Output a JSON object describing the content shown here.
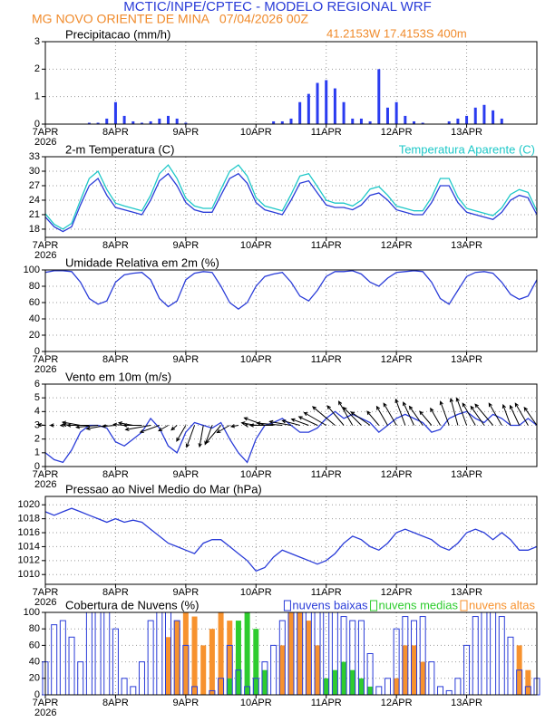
{
  "header": {
    "title": "MCTIC/INPE/CPTEC - MODELO REGIONAL WRF",
    "location_time": "MG NOVO ORIENTE DE MINA   07/04/2026 00Z",
    "coordinates": "41.2153W 17.4153S 400m"
  },
  "chart_data": [
    {
      "type": "bar",
      "title": "Precipitacao (mm/h)",
      "year": "2026",
      "x": [
        0,
        3,
        6,
        9,
        12,
        15,
        18,
        21,
        24,
        27,
        30,
        33,
        36,
        39,
        42,
        45,
        48,
        51,
        54,
        57,
        60,
        63,
        66,
        69,
        72,
        75,
        78,
        81,
        84,
        87,
        90,
        93,
        96,
        99,
        102,
        105,
        108,
        111,
        114,
        117,
        120,
        123,
        126,
        129,
        132,
        135,
        138,
        141,
        144,
        147,
        150,
        153,
        156,
        159,
        162,
        165,
        168
      ],
      "xlim": [
        0,
        168
      ],
      "xticks": [
        {
          "value": 0,
          "label": "7APR"
        },
        {
          "value": 24,
          "label": "8APR"
        },
        {
          "value": 48,
          "label": "9APR"
        },
        {
          "value": 72,
          "label": "10APR"
        },
        {
          "value": 96,
          "label": "11APR"
        },
        {
          "value": 120,
          "label": "12APR"
        },
        {
          "value": 144,
          "label": "13APR"
        }
      ],
      "ylim": [
        0,
        3
      ],
      "yticks": [
        0,
        1,
        2,
        3
      ],
      "grid": true,
      "series": [
        {
          "color": "#2a3cf0",
          "values": [
            0,
            0,
            0,
            0,
            0,
            0.05,
            0.05,
            0.2,
            0.8,
            0.3,
            0.1,
            0.05,
            0.1,
            0.2,
            0.3,
            0.2,
            0.05,
            0,
            0,
            0,
            0,
            0,
            0,
            0,
            0,
            0,
            0.1,
            0.1,
            0.2,
            0.8,
            1.1,
            1.5,
            1.6,
            1.3,
            0.8,
            0.2,
            0.2,
            0.1,
            2.0,
            0.6,
            0.8,
            0.3,
            0.1,
            0.05,
            0,
            0,
            0.1,
            0.2,
            0.3,
            0.6,
            0.7,
            0.5,
            0.2,
            0,
            0,
            0,
            0
          ]
        }
      ]
    },
    {
      "type": "line",
      "title": "2-m Temperatura (C)",
      "year": "2026",
      "legend": "top-right",
      "x": [
        0,
        3,
        6,
        9,
        12,
        15,
        18,
        21,
        24,
        27,
        30,
        33,
        36,
        39,
        42,
        45,
        48,
        51,
        54,
        57,
        60,
        63,
        66,
        69,
        72,
        75,
        78,
        81,
        84,
        87,
        90,
        93,
        96,
        99,
        102,
        105,
        108,
        111,
        114,
        117,
        120,
        123,
        126,
        129,
        132,
        135,
        138,
        141,
        144,
        147,
        150,
        153,
        156,
        159,
        162,
        165,
        168
      ],
      "xlim": [
        0,
        168
      ],
      "xticks": [
        {
          "value": 0,
          "label": "7APR"
        },
        {
          "value": 24,
          "label": "8APR"
        },
        {
          "value": 48,
          "label": "9APR"
        },
        {
          "value": 72,
          "label": "10APR"
        },
        {
          "value": 96,
          "label": "11APR"
        },
        {
          "value": 120,
          "label": "12APR"
        },
        {
          "value": 144,
          "label": "13APR"
        }
      ],
      "ylim": [
        16.3,
        33
      ],
      "yticks": [
        18,
        21,
        24,
        27,
        30,
        33
      ],
      "grid": true,
      "series": [
        {
          "color": "#2a3cd8",
          "values": [
            20.5,
            18.5,
            17.5,
            18.5,
            23,
            27,
            28.5,
            25,
            22.5,
            22,
            21.5,
            21,
            24,
            28,
            29.5,
            27,
            23.5,
            22,
            21.5,
            21.5,
            25,
            28.5,
            29.5,
            27.5,
            23.5,
            22,
            21.5,
            21,
            24,
            27.5,
            28,
            25.5,
            23,
            22.5,
            22.5,
            22,
            23,
            25,
            25.5,
            24,
            22,
            21.5,
            21,
            21,
            23.5,
            27,
            27,
            23.5,
            21.5,
            21,
            20.5,
            20,
            21.5,
            24,
            25,
            24.5,
            21
          ]
        },
        {
          "name": "Temperatura Aparente (C)",
          "color": "#1ec8c8",
          "values": [
            21.2,
            19,
            18,
            19.2,
            24,
            28.5,
            30,
            26.2,
            23.4,
            22.8,
            22.3,
            21.8,
            25,
            29.5,
            31.3,
            28.5,
            24.4,
            22.8,
            22.3,
            22.3,
            26.2,
            30,
            31.3,
            29,
            24.5,
            22.8,
            22.3,
            21.8,
            25.2,
            29,
            29.5,
            26.8,
            24,
            23.4,
            23.4,
            22.8,
            24,
            26.3,
            26.8,
            25,
            22.8,
            22.3,
            21.8,
            21.8,
            24.6,
            28.5,
            28.5,
            24.6,
            22.3,
            21.8,
            21.3,
            20.8,
            22.4,
            25.2,
            26.2,
            25.6,
            21.8
          ]
        }
      ]
    },
    {
      "type": "line",
      "title": "Umidade Relativa em 2m (%)",
      "year": "2026",
      "x": [
        0,
        3,
        6,
        9,
        12,
        15,
        18,
        21,
        24,
        27,
        30,
        33,
        36,
        39,
        42,
        45,
        48,
        51,
        54,
        57,
        60,
        63,
        66,
        69,
        72,
        75,
        78,
        81,
        84,
        87,
        90,
        93,
        96,
        99,
        102,
        105,
        108,
        111,
        114,
        117,
        120,
        123,
        126,
        129,
        132,
        135,
        138,
        141,
        144,
        147,
        150,
        153,
        156,
        159,
        162,
        165,
        168
      ],
      "xlim": [
        0,
        168
      ],
      "xticks": [
        {
          "value": 0,
          "label": "7APR"
        },
        {
          "value": 24,
          "label": "8APR"
        },
        {
          "value": 48,
          "label": "9APR"
        },
        {
          "value": 72,
          "label": "10APR"
        },
        {
          "value": 96,
          "label": "11APR"
        },
        {
          "value": 120,
          "label": "12APR"
        },
        {
          "value": 144,
          "label": "13APR"
        }
      ],
      "ylim": [
        0,
        100
      ],
      "yticks": [
        0,
        20,
        40,
        60,
        80,
        100
      ],
      "grid": true,
      "series": [
        {
          "color": "#2a3cd8",
          "values": [
            97,
            99,
            99,
            98,
            85,
            65,
            58,
            62,
            85,
            94,
            96,
            97,
            88,
            65,
            55,
            62,
            88,
            96,
            98,
            97,
            80,
            60,
            52,
            60,
            80,
            92,
            95,
            97,
            85,
            68,
            62,
            75,
            92,
            98,
            98,
            99,
            95,
            85,
            80,
            90,
            97,
            98,
            99,
            98,
            85,
            65,
            58,
            75,
            92,
            97,
            98,
            96,
            85,
            70,
            64,
            68,
            88
          ]
        }
      ]
    },
    {
      "type": "wind",
      "title": "Vento em 10m (m/s)",
      "year": "2026",
      "x": [
        0,
        3,
        6,
        9,
        12,
        15,
        18,
        21,
        24,
        27,
        30,
        33,
        36,
        39,
        42,
        45,
        48,
        51,
        54,
        57,
        60,
        63,
        66,
        69,
        72,
        75,
        78,
        81,
        84,
        87,
        90,
        93,
        96,
        99,
        102,
        105,
        108,
        111,
        114,
        117,
        120,
        123,
        126,
        129,
        132,
        135,
        138,
        141,
        144,
        147,
        150,
        153,
        156,
        159,
        162,
        165,
        168
      ],
      "xlim": [
        0,
        168
      ],
      "xticks": [
        {
          "value": 0,
          "label": "7APR"
        },
        {
          "value": 24,
          "label": "8APR"
        },
        {
          "value": 48,
          "label": "9APR"
        },
        {
          "value": 72,
          "label": "10APR"
        },
        {
          "value": 96,
          "label": "11APR"
        },
        {
          "value": 120,
          "label": "12APR"
        },
        {
          "value": 144,
          "label": "13APR"
        }
      ],
      "ylim": [
        0,
        6
      ],
      "yticks": [
        0,
        1,
        2,
        3,
        4,
        5,
        6
      ],
      "grid": true,
      "series": [
        {
          "color": "#2a3cd8",
          "values": [
            1.0,
            0.5,
            0.3,
            1.2,
            2.5,
            3.0,
            3.0,
            2.8,
            1.8,
            1.5,
            2.0,
            2.5,
            3.5,
            2.8,
            1.5,
            1.0,
            2.5,
            3.2,
            3.0,
            2.8,
            3.2,
            2.0,
            1.0,
            0.3,
            2.0,
            3.0,
            3.2,
            3.5,
            3.0,
            2.5,
            2.5,
            2.8,
            3.5,
            4.0,
            3.5,
            3.8,
            3.5,
            3.2,
            2.5,
            3.0,
            3.5,
            3.8,
            3.5,
            3.2,
            2.5,
            2.7,
            3.5,
            3.8,
            4.0,
            3.5,
            3.2,
            3.8,
            3.5,
            3.0,
            3.0,
            3.5,
            3.0
          ]
        }
      ],
      "directions": [
        95,
        90,
        85,
        95,
        100,
        90,
        85,
        80,
        85,
        95,
        100,
        90,
        80,
        70,
        60,
        50,
        30,
        20,
        10,
        20,
        40,
        60,
        80,
        100,
        100,
        110,
        90,
        95,
        100,
        105,
        110,
        115,
        120,
        130,
        140,
        150,
        135,
        125,
        140,
        150,
        150,
        160,
        155,
        145,
        140,
        150,
        160,
        165,
        160,
        150,
        145,
        140,
        150,
        160,
        155,
        150,
        145
      ]
    },
    {
      "type": "line",
      "title": "Pressao ao Nivel Medio do Mar (hPa)",
      "year": "2026",
      "x": [
        0,
        3,
        6,
        9,
        12,
        15,
        18,
        21,
        24,
        27,
        30,
        33,
        36,
        39,
        42,
        45,
        48,
        51,
        54,
        57,
        60,
        63,
        66,
        69,
        72,
        75,
        78,
        81,
        84,
        87,
        90,
        93,
        96,
        99,
        102,
        105,
        108,
        111,
        114,
        117,
        120,
        123,
        126,
        129,
        132,
        135,
        138,
        141,
        144,
        147,
        150,
        153,
        156,
        159,
        162,
        165,
        168
      ],
      "xlim": [
        0,
        168
      ],
      "xticks": [
        {
          "value": 0,
          "label": "7APR"
        },
        {
          "value": 24,
          "label": "8APR"
        },
        {
          "value": 48,
          "label": "9APR"
        },
        {
          "value": 72,
          "label": "10APR"
        },
        {
          "value": 96,
          "label": "11APR"
        },
        {
          "value": 120,
          "label": "12APR"
        },
        {
          "value": 144,
          "label": "13APR"
        }
      ],
      "ylim": [
        1008.6,
        1021.2
      ],
      "yticks": [
        1010,
        1012,
        1014,
        1016,
        1018,
        1020
      ],
      "grid": true,
      "series": [
        {
          "color": "#2a3cd8",
          "values": [
            1019,
            1018.5,
            1019,
            1019.5,
            1019,
            1018.5,
            1018,
            1017.5,
            1018,
            1017.5,
            1017.8,
            1017.5,
            1016.5,
            1015.5,
            1014.5,
            1014,
            1013.5,
            1013,
            1014.5,
            1015,
            1015,
            1014,
            1013,
            1012,
            1010.5,
            1011,
            1012.5,
            1013.5,
            1013,
            1012.5,
            1012,
            1011.5,
            1012,
            1013,
            1014.5,
            1015.5,
            1015,
            1014,
            1013.5,
            1014.5,
            1016,
            1016.5,
            1016,
            1015.5,
            1015,
            1014,
            1013.5,
            1014.5,
            1016,
            1016.5,
            1016,
            1015,
            1016,
            1015,
            1013.5,
            1013.5,
            1014
          ]
        }
      ]
    },
    {
      "type": "bar",
      "title": "Cobertura de Nuvens (%)",
      "year": "2026",
      "legend": "top-right",
      "x": [
        0,
        3,
        6,
        9,
        12,
        15,
        18,
        21,
        24,
        27,
        30,
        33,
        36,
        39,
        42,
        45,
        48,
        51,
        54,
        57,
        60,
        63,
        66,
        69,
        72,
        75,
        78,
        81,
        84,
        87,
        90,
        93,
        96,
        99,
        102,
        105,
        108,
        111,
        114,
        117,
        120,
        123,
        126,
        129,
        132,
        135,
        138,
        141,
        144,
        147,
        150,
        153,
        156,
        159,
        162,
        165,
        168
      ],
      "xlim": [
        0,
        168
      ],
      "xticks": [
        {
          "value": 0,
          "label": "7APR"
        },
        {
          "value": 24,
          "label": "8APR"
        },
        {
          "value": 48,
          "label": "9APR"
        },
        {
          "value": 72,
          "label": "10APR"
        },
        {
          "value": 96,
          "label": "11APR"
        },
        {
          "value": 120,
          "label": "12APR"
        },
        {
          "value": 144,
          "label": "13APR"
        }
      ],
      "ylim": [
        0,
        100
      ],
      "yticks": [
        0,
        20,
        40,
        60,
        80,
        100
      ],
      "grid": true,
      "series": [
        {
          "name": "nuvens altas",
          "color": "#f7922e",
          "values": [
            0,
            0,
            0,
            0,
            0,
            0,
            0,
            0,
            0,
            0,
            0,
            0,
            0,
            0,
            70,
            90,
            100,
            95,
            60,
            80,
            100,
            90,
            50,
            0,
            0,
            0,
            0,
            60,
            100,
            100,
            90,
            60,
            0,
            0,
            0,
            0,
            0,
            0,
            0,
            0,
            20,
            60,
            60,
            40,
            0,
            0,
            0,
            0,
            0,
            0,
            0,
            0,
            0,
            0,
            60,
            30,
            0
          ]
        },
        {
          "name": "nuvens medias",
          "color": "#2ecc2e",
          "values": [
            0,
            0,
            0,
            0,
            0,
            0,
            0,
            0,
            0,
            0,
            0,
            0,
            0,
            0,
            0,
            0,
            0,
            0,
            0,
            0,
            0,
            20,
            90,
            100,
            80,
            30,
            0,
            0,
            0,
            0,
            0,
            0,
            20,
            30,
            40,
            30,
            20,
            10,
            0,
            0,
            0,
            0,
            0,
            0,
            0,
            0,
            0,
            0,
            0,
            0,
            0,
            0,
            0,
            0,
            0,
            0,
            0
          ]
        },
        {
          "name": "nuvens baixas",
          "color": "#2a3cd8",
          "values": [
            40,
            85,
            90,
            70,
            40,
            100,
            100,
            100,
            80,
            20,
            10,
            40,
            90,
            100,
            100,
            90,
            60,
            10,
            0,
            5,
            20,
            60,
            30,
            10,
            20,
            40,
            60,
            90,
            100,
            100,
            100,
            100,
            100,
            100,
            95,
            90,
            90,
            50,
            10,
            20,
            80,
            95,
            90,
            95,
            40,
            10,
            5,
            20,
            60,
            95,
            100,
            100,
            95,
            70,
            30,
            10,
            20
          ]
        }
      ]
    }
  ]
}
